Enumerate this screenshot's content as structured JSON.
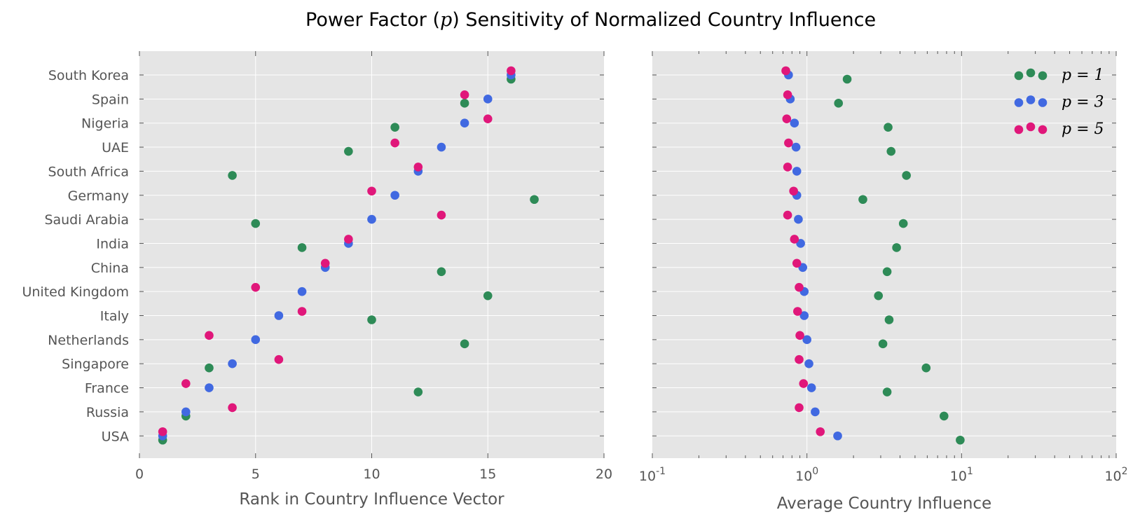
{
  "figure_title": {
    "before": "Power Factor (",
    "math": "p",
    "after": ") Sensitivity of Normalized Country Influence"
  },
  "chart_data": [
    {
      "type": "scatter",
      "xlabel": "Rank in Country Influence Vector",
      "xlim": [
        0,
        20
      ],
      "xticks": [
        "0",
        "5",
        "10",
        "15",
        "20"
      ],
      "categories": [
        "South Korea",
        "Spain",
        "Nigeria",
        "UAE",
        "South Africa",
        "Germany",
        "Saudi Arabia",
        "India",
        "China",
        "United Kingdom",
        "Italy",
        "Netherlands",
        "Singapore",
        "France",
        "Russia",
        "USA"
      ],
      "grid": true,
      "series": [
        {
          "name": "p = 1",
          "color": "#2e8b57",
          "values": [
            16,
            14,
            11,
            9,
            4,
            17,
            5,
            7,
            13,
            15,
            10,
            14,
            3,
            12,
            2,
            1
          ]
        },
        {
          "name": "p = 3",
          "color": "#4169e1",
          "values": [
            16,
            15,
            14,
            13,
            12,
            11,
            10,
            9,
            8,
            7,
            6,
            5,
            4,
            3,
            2,
            1
          ]
        },
        {
          "name": "p = 5",
          "color": "#e0177a",
          "values": [
            16,
            14,
            15,
            11,
            12,
            10,
            13,
            9,
            8,
            5,
            7,
            3,
            6,
            2,
            4,
            1
          ]
        }
      ]
    },
    {
      "type": "scatter",
      "xlabel": "Average Country Influence",
      "xscale": "log",
      "xlim": [
        0.1,
        100
      ],
      "xticks": [
        {
          "base": "10",
          "exp": "-1"
        },
        {
          "base": "10",
          "exp": "0"
        },
        {
          "base": "10",
          "exp": "1"
        },
        {
          "base": "10",
          "exp": "2"
        }
      ],
      "categories": [
        "South Korea",
        "Spain",
        "Nigeria",
        "UAE",
        "South Africa",
        "Germany",
        "Saudi Arabia",
        "India",
        "China",
        "United Kingdom",
        "Italy",
        "Netherlands",
        "Singapore",
        "France",
        "Russia",
        "USA"
      ],
      "grid": true,
      "legend": "top-right",
      "series": [
        {
          "name": "p = 1",
          "color": "#2e8b57",
          "values": [
            1.82,
            1.6,
            3.35,
            3.5,
            4.4,
            2.3,
            4.2,
            3.8,
            3.3,
            2.9,
            3.4,
            3.1,
            5.9,
            3.3,
            7.7,
            9.8
          ]
        },
        {
          "name": "p = 3",
          "color": "#4169e1",
          "values": [
            0.76,
            0.78,
            0.83,
            0.85,
            0.86,
            0.86,
            0.88,
            0.91,
            0.94,
            0.96,
            0.96,
            1.0,
            1.03,
            1.07,
            1.13,
            1.58
          ]
        },
        {
          "name": "p = 5",
          "color": "#e0177a",
          "values": [
            0.73,
            0.75,
            0.74,
            0.76,
            0.75,
            0.82,
            0.75,
            0.83,
            0.86,
            0.89,
            0.87,
            0.9,
            0.89,
            0.95,
            0.89,
            1.22
          ]
        }
      ]
    }
  ]
}
